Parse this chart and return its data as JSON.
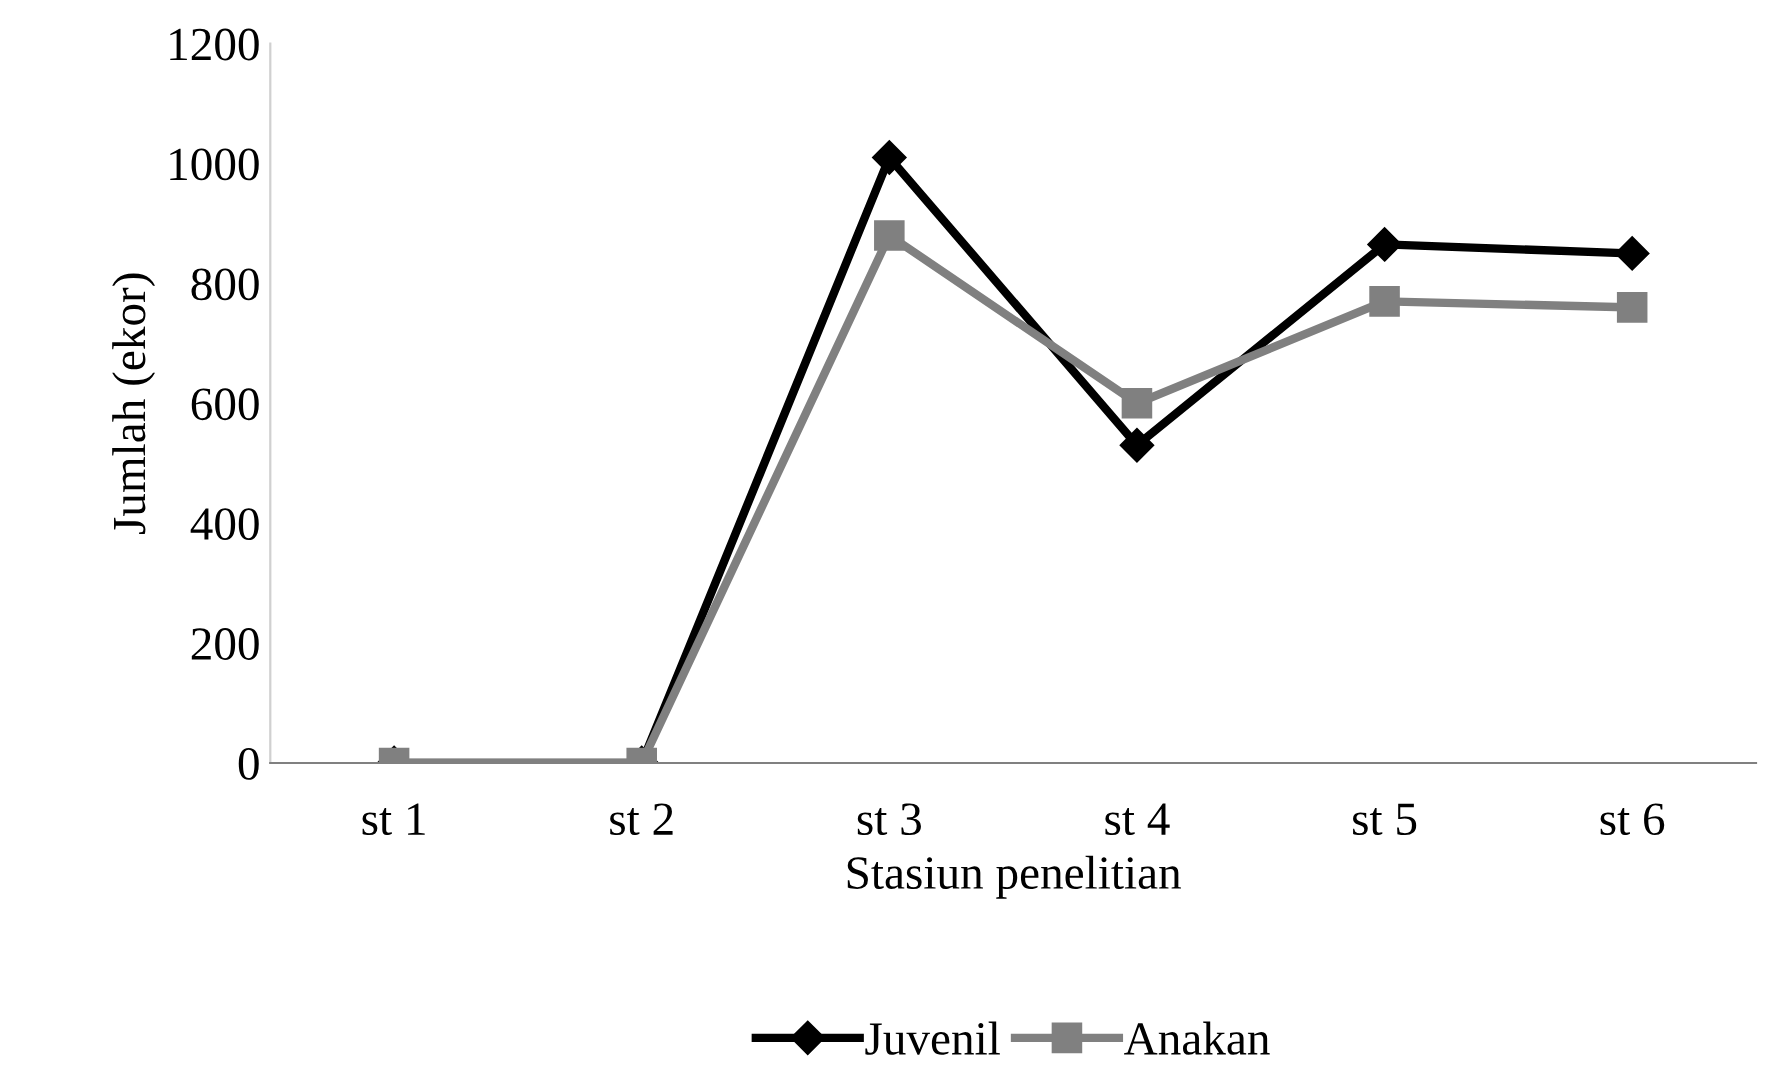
{
  "chart_data": {
    "type": "line",
    "xlabel": "Stasiun penelitian",
    "ylabel": "Jumlah (ekor)",
    "categories": [
      "st 1",
      "st 2",
      "st 3",
      "st 4",
      "st 5",
      "st 6"
    ],
    "series": [
      {
        "name": "Juvenil",
        "color": "#000000",
        "marker": "diamond",
        "values": [
          0,
          0,
          1010,
          530,
          865,
          850
        ]
      },
      {
        "name": "Anakan",
        "color": "#808080",
        "marker": "square",
        "values": [
          0,
          0,
          880,
          600,
          770,
          760
        ]
      }
    ],
    "ylim": [
      0,
      1200
    ],
    "yticks": [
      0,
      200,
      400,
      600,
      800,
      1000,
      1200
    ],
    "grid": false,
    "legend": "bottom",
    "line_style": "solid"
  }
}
